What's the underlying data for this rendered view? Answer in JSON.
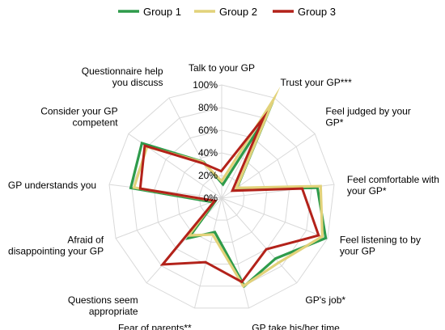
{
  "chart_data": {
    "type": "radar",
    "legend_position": "top",
    "grid": true,
    "rlim": [
      0,
      100
    ],
    "rticks": [
      "0%",
      "20%",
      "40%",
      "60%",
      "80%",
      "100%"
    ],
    "axes": [
      {
        "lines": [
          "Talk to your GP"
        ]
      },
      {
        "lines": [
          "Trust your GP***"
        ]
      },
      {
        "lines": [
          "Feel judged by your",
          "GP*"
        ]
      },
      {
        "lines": [
          "Feel comfortable with",
          "your GP*"
        ]
      },
      {
        "lines": [
          "Feel listening to by",
          "your GP"
        ]
      },
      {
        "lines": [
          "GP's job*"
        ]
      },
      {
        "lines": [
          "GP take his/her time"
        ]
      },
      {
        "lines": [
          "Fear of parents**"
        ]
      },
      {
        "lines": [
          "Questions seem",
          "appropriate"
        ]
      },
      {
        "lines": [
          "Afraid of",
          "disappointing your GP"
        ]
      },
      {
        "lines": [
          "GP understands you"
        ]
      },
      {
        "lines": [
          "Consider your GP",
          "competent"
        ]
      },
      {
        "lines": [
          "Questionnaire help",
          "you discuss"
        ]
      }
    ],
    "series": [
      {
        "name": "Group 1",
        "color": "#2e9b4b",
        "values": [
          13,
          84,
          14,
          84,
          97,
          70,
          79,
          30,
          46,
          8,
          82,
          87,
          37
        ]
      },
      {
        "name": "Group 2",
        "color": "#e2d27a",
        "values": [
          15,
          98,
          16,
          88,
          95,
          76,
          80,
          33,
          44,
          7,
          78,
          80,
          36
        ]
      },
      {
        "name": "Group 3",
        "color": "#b3221a",
        "values": [
          24,
          80,
          12,
          72,
          92,
          60,
          76,
          58,
          78,
          6,
          72,
          82,
          35
        ]
      }
    ]
  }
}
